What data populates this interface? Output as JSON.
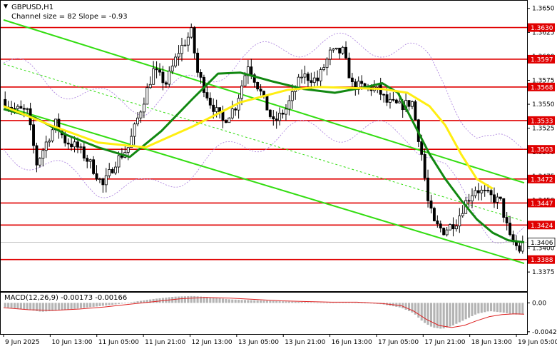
{
  "title": "GBPUSD,H1",
  "subtitle": "Channel size = 82 Slope = -0.93",
  "colors": {
    "background": "#ffffff",
    "bull_candle": "#000000",
    "bear_candle": "#000000",
    "level_line": "#e00000",
    "level_tag_bg": "#e00000",
    "channel": "#33dd11",
    "ma_fast": "#118811",
    "ma_slow": "#ffee11",
    "envelope": "#b088e0",
    "macd_hist": "#b4b4b4",
    "macd_signal": "#dd2222"
  },
  "chart_data": [
    {
      "type": "candlestick",
      "symbol": "GBPUSD",
      "timeframe": "H1",
      "title": "GBPUSD,H1",
      "indicator_text": "Channel size = 82 Slope = -0.93",
      "ylim": [
        1.3355,
        1.3658
      ],
      "y_ticks": [
        1.3375,
        1.34,
        1.3425,
        1.345,
        1.3475,
        1.35,
        1.3525,
        1.355,
        1.3575,
        1.36,
        1.3625,
        1.365
      ],
      "y_tick_labels": [
        "1.3375",
        "1.3400",
        "1.3425",
        "1.3450",
        "1.3475",
        "1.3500",
        "1.3525",
        "1.3550",
        "1.3575",
        "1.3600",
        "1.3625",
        "1.3650"
      ],
      "x_labels": [
        "9 Jun 2025",
        "10 Jun 13:00",
        "11 Jun 05:00",
        "11 Jun 21:00",
        "12 Jun 13:00",
        "13 Jun 05:00",
        "13 Jun 21:00",
        "16 Jun 13:00",
        "17 Jun 05:00",
        "17 Jun 21:00",
        "18 Jun 13:00",
        "19 Jun 05:00"
      ],
      "bar_count": 165,
      "horizontal_levels": [
        1.363,
        1.3597,
        1.3568,
        1.3533,
        1.3503,
        1.3472,
        1.3447,
        1.3424,
        1.3388
      ],
      "level_labels": [
        "1.3630",
        "1.3597",
        "1.3568",
        "1.3533",
        "1.3503",
        "1.3472",
        "1.3447",
        "1.3424",
        "1.3388"
      ],
      "current_price": 1.3406,
      "current_price_label": "1.3406",
      "price_path": [
        [
          0,
          1.3555
        ],
        [
          4,
          1.3545
        ],
        [
          8,
          1.3542
        ],
        [
          11,
          1.3488
        ],
        [
          14,
          1.351
        ],
        [
          17,
          1.353
        ],
        [
          20,
          1.3512
        ],
        [
          24,
          1.3505
        ],
        [
          28,
          1.3488
        ],
        [
          32,
          1.3465
        ],
        [
          36,
          1.349
        ],
        [
          40,
          1.3505
        ],
        [
          44,
          1.3545
        ],
        [
          48,
          1.3585
        ],
        [
          52,
          1.3572
        ],
        [
          56,
          1.3605
        ],
        [
          60,
          1.3625
        ],
        [
          62,
          1.3583
        ],
        [
          66,
          1.3552
        ],
        [
          70,
          1.3532
        ],
        [
          74,
          1.3548
        ],
        [
          78,
          1.3592
        ],
        [
          82,
          1.3562
        ],
        [
          86,
          1.353
        ],
        [
          90,
          1.3545
        ],
        [
          95,
          1.358
        ],
        [
          100,
          1.3575
        ],
        [
          104,
          1.3603
        ],
        [
          108,
          1.3605
        ],
        [
          111,
          1.357
        ],
        [
          115,
          1.3568
        ],
        [
          119,
          1.3566
        ],
        [
          122,
          1.3552
        ],
        [
          126,
          1.3548
        ],
        [
          130,
          1.3552
        ],
        [
          133,
          1.3498
        ],
        [
          135,
          1.3448
        ],
        [
          137,
          1.3425
        ],
        [
          140,
          1.3418
        ],
        [
          144,
          1.3428
        ],
        [
          147,
          1.3448
        ],
        [
          150,
          1.3462
        ],
        [
          154,
          1.3455
        ],
        [
          158,
          1.3448
        ],
        [
          161,
          1.341
        ],
        [
          164,
          1.3398
        ],
        [
          165,
          1.3406
        ]
      ],
      "channel_lines": [
        {
          "name": "upper",
          "x": [
            0,
            165
          ],
          "y": [
            1.3638,
            1.3468
          ]
        },
        {
          "name": "middle",
          "x": [
            0,
            165
          ],
          "y": [
            1.3592,
            1.3428
          ]
        },
        {
          "name": "lower",
          "x": [
            0,
            165
          ],
          "y": [
            1.3548,
            1.3384
          ]
        }
      ],
      "moving_averages": [
        {
          "name": "fast",
          "color": "#118811",
          "x": [
            0,
            10,
            20,
            30,
            40,
            50,
            60,
            68,
            75,
            85,
            95,
            105,
            115,
            120,
            125,
            130,
            135,
            140,
            145,
            150,
            155,
            160,
            165
          ],
          "y": [
            1.3545,
            1.3536,
            1.3518,
            1.3505,
            1.3495,
            1.3522,
            1.3556,
            1.3582,
            1.3583,
            1.3574,
            1.3566,
            1.3562,
            1.3568,
            1.3572,
            1.3562,
            1.353,
            1.3498,
            1.3472,
            1.345,
            1.343,
            1.3416,
            1.3408,
            1.3406
          ]
        },
        {
          "name": "slow",
          "color": "#ffee11",
          "x": [
            0,
            15,
            30,
            45,
            60,
            75,
            90,
            100,
            110,
            120,
            128,
            135,
            140,
            145,
            150,
            155
          ],
          "y": [
            1.3548,
            1.3528,
            1.351,
            1.3505,
            1.3527,
            1.3552,
            1.3565,
            1.3568,
            1.3567,
            1.3566,
            1.3562,
            1.3548,
            1.3528,
            1.3498,
            1.3472,
            1.3462
          ]
        }
      ]
    },
    {
      "type": "histogram",
      "indicator": "MACD",
      "title": "MACD(12,26,9) -0.00173 -0.00166",
      "params": "12,26,9",
      "macd_value": -0.00173,
      "signal_value": -0.00166,
      "ylim": [
        -0.00455,
        0.0015
      ],
      "y_ticks": [
        0.0,
        -0.00422
      ],
      "y_tick_labels": [
        "0.00",
        "-0.00422"
      ],
      "macd_hist": {
        "x": [
          0,
          6,
          12,
          18,
          24,
          30,
          36,
          42,
          48,
          54,
          60,
          66,
          72,
          78,
          84,
          90,
          96,
          102,
          108,
          114,
          120,
          126,
          130,
          133,
          136,
          139,
          142,
          146,
          150,
          154,
          158,
          162,
          165
        ],
        "y": [
          -0.0006,
          -0.0009,
          -0.0013,
          -0.0011,
          -0.0008,
          -0.0005,
          -0.0002,
          0.0002,
          0.0006,
          0.0009,
          0.001,
          0.0008,
          0.0005,
          0.0004,
          0.0003,
          0.0002,
          0.0001,
          0.0,
          0.0001,
          0.0,
          -0.0002,
          -0.0007,
          -0.0015,
          -0.0028,
          -0.0036,
          -0.0038,
          -0.0034,
          -0.0025,
          -0.0016,
          -0.0012,
          -0.0014,
          -0.0017,
          -0.0017
        ]
      },
      "signal": {
        "x": [
          0,
          8,
          16,
          24,
          32,
          40,
          48,
          56,
          64,
          72,
          80,
          88,
          96,
          104,
          112,
          120,
          126,
          130,
          134,
          138,
          142,
          146,
          150,
          154,
          158,
          162,
          165
        ],
        "y": [
          -0.0007,
          -0.001,
          -0.0011,
          -0.0009,
          -0.0006,
          -0.0002,
          0.0002,
          0.0006,
          0.0008,
          0.0007,
          0.0005,
          0.0003,
          0.0002,
          0.0001,
          0.0001,
          -0.0001,
          -0.0004,
          -0.0012,
          -0.0024,
          -0.0033,
          -0.0036,
          -0.0033,
          -0.0026,
          -0.002,
          -0.0017,
          -0.0016,
          -0.00166
        ]
      }
    }
  ]
}
